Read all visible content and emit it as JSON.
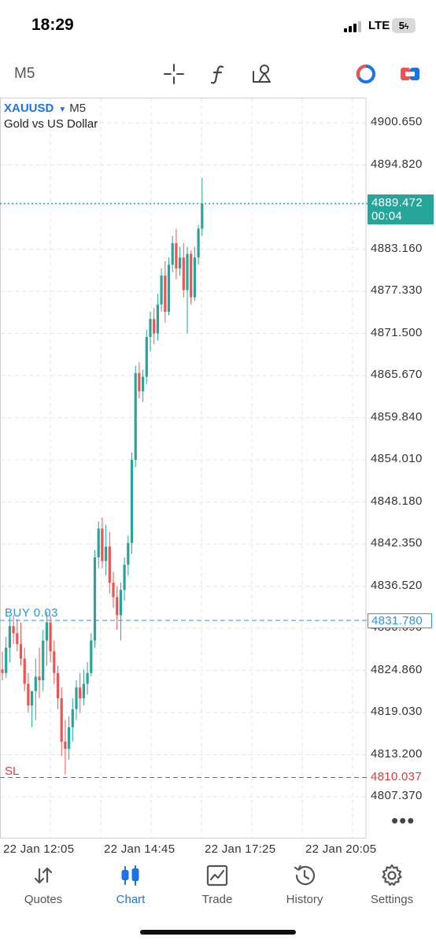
{
  "status_bar": {
    "time": "18:29",
    "network": "LTE",
    "battery": "5"
  },
  "toolbar": {
    "timeframe": "M5",
    "icons": [
      "crosshair-icon",
      "function-icon",
      "objects-icon",
      "one-click-trading-icon",
      "trade-panel-icon"
    ]
  },
  "chart": {
    "symbol": "XAUUSD",
    "timeframe": "M5",
    "description": "Gold vs US Dollar",
    "price_axis": [
      "4900.650",
      "4894.820",
      "4883.160",
      "4877.330",
      "4871.500",
      "4865.670",
      "4859.840",
      "4854.010",
      "4848.180",
      "4842.350",
      "4836.520",
      "4830.690",
      "4824.860",
      "4819.030",
      "4813.200",
      "4807.370"
    ],
    "current_price": "4889.472",
    "countdown": "00:04",
    "buy_label": "BUY 0.03",
    "buy_price": "4831.780",
    "sl_label": "SL",
    "sl_price": "4810.037",
    "time_axis": [
      "22 Jan 12:05",
      "22 Jan 14:45",
      "22 Jan 17:25",
      "22 Jan 20:05"
    ],
    "colors": {
      "bull": "#26a69a",
      "bear": "#ef5350",
      "buy_line": "#2196f3",
      "sl_line": "#e53935",
      "grid": "#e6e6e6"
    }
  },
  "chart_data": {
    "type": "candlestick",
    "symbol": "XAUUSD",
    "timeframe": "M5",
    "title": "Gold vs US Dollar",
    "ylim": [
      4803.5,
      4905.5
    ],
    "y_ticks": [
      4900.65,
      4894.82,
      4883.16,
      4877.33,
      4871.5,
      4865.67,
      4859.84,
      4854.01,
      4848.18,
      4842.35,
      4836.52,
      4830.69,
      4824.86,
      4819.03,
      4813.2,
      4807.37
    ],
    "x_ticks": [
      "22 Jan 12:05",
      "22 Jan 14:45",
      "22 Jan 17:25",
      "22 Jan 20:05"
    ],
    "grid": true,
    "lines": [
      {
        "label": "BUY 0.03",
        "price": 4831.78
      },
      {
        "label": "SL",
        "price": 4810.037
      },
      {
        "label": "current",
        "price": 4889.472
      }
    ],
    "candles": [
      [
        4825.0,
        4827.5,
        4823.5,
        4824.5
      ],
      [
        4824.5,
        4829.5,
        4823.8,
        4828.0
      ],
      [
        4828.0,
        4832.2,
        4826.0,
        4831.0
      ],
      [
        4831.0,
        4832.5,
        4828.5,
        4830.0
      ],
      [
        4830.0,
        4832.0,
        4827.5,
        4828.5
      ],
      [
        4828.5,
        4831.5,
        4825.5,
        4826.5
      ],
      [
        4826.5,
        4828.0,
        4822.0,
        4823.0
      ],
      [
        4823.0,
        4824.5,
        4819.0,
        4820.0
      ],
      [
        4820.0,
        4822.0,
        4817.0,
        4822.0
      ],
      [
        4822.0,
        4826.5,
        4818.0,
        4824.0
      ],
      [
        4824.0,
        4828.0,
        4821.0,
        4823.5
      ],
      [
        4823.5,
        4830.5,
        4822.0,
        4829.0
      ],
      [
        4829.0,
        4833.0,
        4825.5,
        4831.5
      ],
      [
        4831.5,
        4832.5,
        4826.0,
        4827.5
      ],
      [
        4827.5,
        4829.0,
        4823.0,
        4824.5
      ],
      [
        4824.5,
        4825.5,
        4819.5,
        4821.0
      ],
      [
        4821.0,
        4822.5,
        4813.0,
        4815.0
      ],
      [
        4815.0,
        4818.0,
        4810.5,
        4814.0
      ],
      [
        4814.0,
        4818.5,
        4812.5,
        4817.0
      ],
      [
        4817.0,
        4821.0,
        4815.0,
        4819.5
      ],
      [
        4819.5,
        4823.5,
        4818.0,
        4822.5
      ],
      [
        4822.5,
        4824.5,
        4819.0,
        4821.0
      ],
      [
        4821.0,
        4825.0,
        4820.0,
        4823.0
      ],
      [
        4823.0,
        4826.0,
        4821.5,
        4824.5
      ],
      [
        4824.5,
        4830.0,
        4824.0,
        4829.0
      ],
      [
        4829.0,
        4841.5,
        4828.0,
        4840.5
      ],
      [
        4840.5,
        4845.5,
        4839.0,
        4844.5
      ],
      [
        4844.5,
        4846.0,
        4839.0,
        4840.0
      ],
      [
        4840.0,
        4845.0,
        4838.0,
        4842.0
      ],
      [
        4842.0,
        4844.0,
        4835.5,
        4837.0
      ],
      [
        4837.0,
        4838.5,
        4833.5,
        4835.0
      ],
      [
        4835.0,
        4836.5,
        4830.5,
        4832.5
      ],
      [
        4832.5,
        4837.0,
        4829.0,
        4836.0
      ],
      [
        4836.0,
        4840.5,
        4834.5,
        4839.5
      ],
      [
        4839.5,
        4843.5,
        4838.0,
        4842.5
      ],
      [
        4842.5,
        4855.0,
        4841.0,
        4854.0
      ],
      [
        4854.0,
        4867.0,
        4853.0,
        4866.0
      ],
      [
        4866.0,
        4867.5,
        4862.5,
        4863.5
      ],
      [
        4863.5,
        4866.5,
        4862.0,
        4865.5
      ],
      [
        4865.5,
        4872.0,
        4864.5,
        4871.0
      ],
      [
        4871.0,
        4874.5,
        4869.0,
        4873.5
      ],
      [
        4873.5,
        4875.0,
        4870.0,
        4871.5
      ],
      [
        4871.5,
        4877.0,
        4870.5,
        4875.5
      ],
      [
        4875.5,
        4880.5,
        4874.5,
        4879.5
      ],
      [
        4879.5,
        4881.5,
        4873.0,
        4874.5
      ],
      [
        4874.5,
        4882.0,
        4874.0,
        4881.0
      ],
      [
        4881.0,
        4885.0,
        4880.0,
        4884.0
      ],
      [
        4884.0,
        4886.0,
        4879.0,
        4880.5
      ],
      [
        4880.5,
        4883.5,
        4879.5,
        4882.0
      ],
      [
        4882.0,
        4884.0,
        4876.5,
        4877.5
      ],
      [
        4877.5,
        4883.5,
        4871.5,
        4882.5
      ],
      [
        4882.5,
        4883.0,
        4875.5,
        4876.5
      ],
      [
        4876.5,
        4883.5,
        4876.0,
        4882.0
      ],
      [
        4882.0,
        4886.5,
        4881.0,
        4886.0
      ],
      [
        4886.0,
        4893.0,
        4885.0,
        4889.472
      ]
    ]
  },
  "bottom_nav": [
    {
      "label": "Quotes",
      "icon": "quotes-arrows-icon",
      "active": false
    },
    {
      "label": "Chart",
      "icon": "chart-candles-icon",
      "active": true
    },
    {
      "label": "Trade",
      "icon": "trade-graph-icon",
      "active": false
    },
    {
      "label": "History",
      "icon": "history-clock-icon",
      "active": false
    },
    {
      "label": "Settings",
      "icon": "settings-gear-icon",
      "active": false
    }
  ]
}
